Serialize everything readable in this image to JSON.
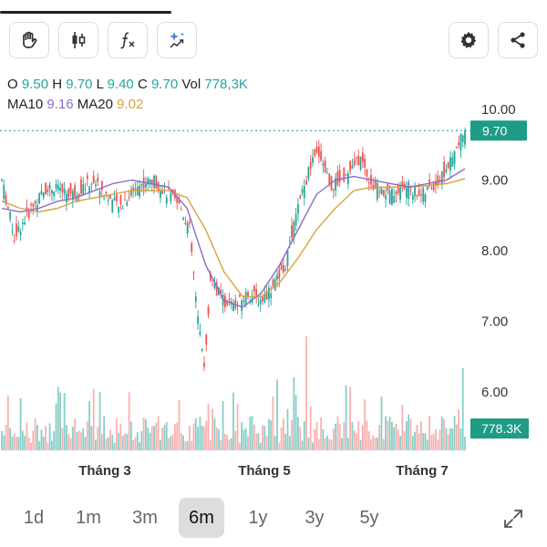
{
  "toolbar": {
    "buttons": [
      {
        "name": "hand-tool-button",
        "icon": "hand-icon"
      },
      {
        "name": "candle-type-button",
        "icon": "candlestick-icon"
      },
      {
        "name": "indicator-button",
        "icon": "function-icon"
      },
      {
        "name": "ai-insight-button",
        "icon": "sparkle-chart-icon"
      }
    ],
    "right_buttons": [
      {
        "name": "settings-button",
        "icon": "gear-icon"
      },
      {
        "name": "share-button",
        "icon": "share-icon"
      }
    ]
  },
  "ohlc": {
    "o_label": "O",
    "o_value": "9.50",
    "h_label": "H",
    "h_value": "9.70",
    "l_label": "L",
    "l_value": "9.40",
    "c_label": "C",
    "c_value": "9.70",
    "vol_label": "Vol",
    "vol_value": "778,3K"
  },
  "ma": {
    "ma10_label": "MA10",
    "ma10_value": "9.16",
    "ma20_label": "MA20",
    "ma20_value": "9.02"
  },
  "price_tag": "9.70",
  "volume_tag": "778.3K",
  "periods": [
    "1d",
    "1m",
    "3m",
    "6m",
    "1y",
    "3y",
    "5y"
  ],
  "active_period": "6m",
  "colors": {
    "up": "#26a69a",
    "down": "#ef5350",
    "ma10": "#8a6ccd",
    "ma20": "#d8a33c",
    "tag": "#1e9c85"
  },
  "chart_data": {
    "type": "candlestick",
    "y_ticks": [
      "10.00",
      "9.00",
      "8.00",
      "7.00",
      "6.00"
    ],
    "ylim": [
      6.0,
      10.0
    ],
    "x_labels": [
      "Tháng 3",
      "Tháng 5",
      "Tháng 7"
    ],
    "last_close": 9.7,
    "series": [
      {
        "name": "MA10",
        "values": [
          8.6,
          8.55,
          8.6,
          8.7,
          8.75,
          8.85,
          8.95,
          9.0,
          8.95,
          8.9,
          8.6,
          7.8,
          7.3,
          7.2,
          7.4,
          7.8,
          8.3,
          8.8,
          9.0,
          9.05,
          9.0,
          8.95,
          8.9,
          8.95,
          9.0,
          9.16
        ]
      },
      {
        "name": "MA20",
        "values": [
          8.7,
          8.6,
          8.55,
          8.6,
          8.7,
          8.75,
          8.8,
          8.85,
          8.85,
          8.85,
          8.75,
          8.3,
          7.7,
          7.35,
          7.35,
          7.55,
          7.9,
          8.3,
          8.6,
          8.85,
          8.9,
          8.9,
          8.9,
          8.92,
          8.95,
          9.02
        ]
      }
    ]
  }
}
